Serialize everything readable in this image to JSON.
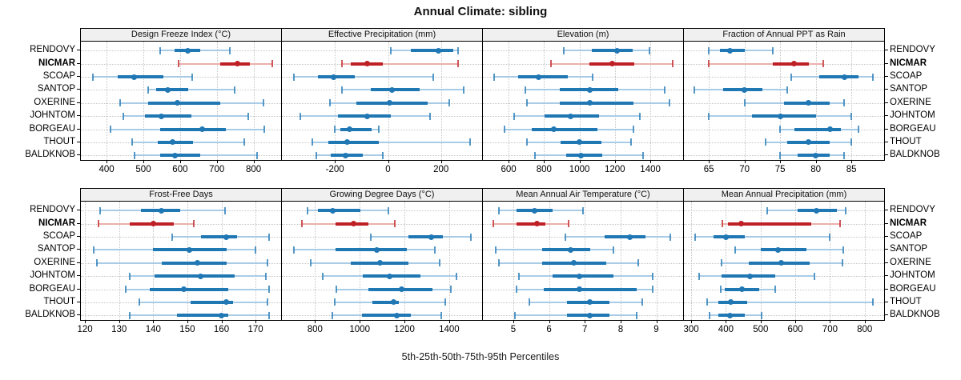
{
  "title": "Annual Climate: sibling",
  "caption": "5th-25th-50th-75th-95th Percentiles",
  "colors": {
    "main": "#1F77B4",
    "main_light": "#A9CCE6",
    "highlight": "#BF2026",
    "highlight_light": "#EDB0AA",
    "grid": "#C6C6C6",
    "strip_bg": "#F0F0F0",
    "border": "#000000"
  },
  "chart_data": {
    "type": "scatter",
    "subtype": "percentile-interval-trellis",
    "title": "Annual Climate: sibling",
    "caption": "5th-25th-50th-75th-95th Percentiles",
    "percentiles": [
      5,
      25,
      50,
      75,
      95
    ],
    "grid": true,
    "legend_position": "none",
    "stations_top_to_bottom": [
      "RENDOVY",
      "NICMAR",
      "SCOAP",
      "SANTOP",
      "OXERINE",
      "JOHNTOM",
      "BORGEAU",
      "THOUT",
      "BALDKNOB"
    ],
    "highlight_station": "NICMAR",
    "panels": [
      {
        "title": "Design Freeze Index (°C)",
        "xlim": [
          330,
          875
        ],
        "ticks": [
          400,
          500,
          600,
          700,
          800
        ],
        "values": {
          "RENDOVY": [
            545,
            585,
            620,
            655,
            735
          ],
          "NICMAR": [
            595,
            710,
            755,
            790,
            850
          ],
          "SCOAP": [
            363,
            430,
            475,
            554,
            634
          ],
          "SANTOP": [
            513,
            535,
            566,
            622,
            748
          ],
          "OXERINE": [
            437,
            513,
            593,
            710,
            826
          ],
          "JOHNTOM": [
            445,
            505,
            550,
            630,
            785
          ],
          "BORGEAU": [
            410,
            545,
            660,
            725,
            830
          ],
          "THOUT": [
            470,
            540,
            580,
            635,
            775
          ],
          "BALDKNOB": [
            475,
            545,
            585,
            655,
            810
          ]
        }
      },
      {
        "title": "Effective Precipitation (mm)",
        "xlim": [
          -400,
          355
        ],
        "ticks": [
          -200,
          0,
          200
        ],
        "values": {
          "RENDOVY": [
            10,
            85,
            190,
            245,
            265
          ],
          "NICMAR": [
            -175,
            -140,
            -80,
            -20,
            265
          ],
          "SCOAP": [
            -355,
            -265,
            -205,
            -125,
            170
          ],
          "SANTOP": [
            -175,
            -65,
            15,
            120,
            285
          ],
          "OXERINE": [
            -220,
            -120,
            5,
            150,
            230
          ],
          "JOHNTOM": [
            -330,
            -190,
            -80,
            10,
            160
          ],
          "BORGEAU": [
            -200,
            -180,
            -145,
            -60,
            -35
          ],
          "THOUT": [
            -285,
            -225,
            -155,
            -35,
            310
          ],
          "BALDKNOB": [
            -270,
            -215,
            -160,
            -95,
            -20
          ]
        }
      },
      {
        "title": "Elevation (m)",
        "xlim": [
          455,
          1585
        ],
        "ticks": [
          600,
          800,
          1000,
          1200,
          1400
        ],
        "values": {
          "RENDOVY": [
            910,
            1070,
            1210,
            1300,
            1395
          ],
          "NICMAR": [
            840,
            1055,
            1185,
            1310,
            1525
          ],
          "SCOAP": [
            520,
            655,
            770,
            935,
            1075
          ],
          "SANTOP": [
            695,
            890,
            1060,
            1220,
            1480
          ],
          "OXERINE": [
            705,
            890,
            1060,
            1305,
            1510
          ],
          "JOHNTOM": [
            630,
            805,
            950,
            1110,
            1340
          ],
          "BORGEAU": [
            575,
            730,
            855,
            1100,
            1305
          ],
          "THOUT": [
            705,
            895,
            1000,
            1125,
            1290
          ],
          "BALDKNOB": [
            750,
            925,
            1010,
            1130,
            1360
          ]
        }
      },
      {
        "title": "Fraction of Annual PPT as Rain",
        "xlim": [
          61.5,
          89.6
        ],
        "ticks": [
          65,
          70,
          75,
          80,
          85
        ],
        "values": {
          "RENDOVY": [
            65,
            66.5,
            68,
            70,
            74
          ],
          "NICMAR": [
            65,
            74,
            77,
            79,
            81
          ],
          "SCOAP": [
            76.5,
            80.5,
            84,
            86,
            88
          ],
          "SANTOP": [
            63,
            67,
            70,
            72.5,
            76
          ],
          "OXERINE": [
            70,
            75.5,
            79,
            82,
            84
          ],
          "JOHNTOM": [
            65,
            71,
            75,
            80,
            85
          ],
          "BORGEAU": [
            75,
            77,
            82,
            83.5,
            86
          ],
          "THOUT": [
            73,
            76,
            79,
            82,
            85
          ],
          "BALDKNOB": [
            75,
            77.5,
            80,
            82,
            84
          ]
        }
      },
      {
        "title": "Frost-Free Days",
        "xlim": [
          118.8,
          177.5
        ],
        "ticks": [
          120,
          130,
          140,
          150,
          160,
          170
        ],
        "values": {
          "RENDOVY": [
            124.5,
            136.5,
            142.5,
            148,
            161
          ],
          "NICMAR": [
            124,
            133,
            140,
            146,
            152
          ],
          "SCOAP": [
            145.5,
            154,
            161.5,
            164.5,
            174
          ],
          "SANTOP": [
            122.5,
            140,
            150.5,
            161.5,
            170
          ],
          "OXERINE": [
            123.5,
            142.5,
            153,
            161.5,
            173.5
          ],
          "JOHNTOM": [
            133,
            140.5,
            154,
            164,
            173
          ],
          "BORGEAU": [
            132,
            139,
            149,
            162,
            174
          ],
          "THOUT": [
            136,
            151,
            161.5,
            163.5,
            173.5
          ],
          "BALDKNOB": [
            133,
            147,
            160,
            162,
            174
          ]
        }
      },
      {
        "title": "Growing Degree Days (°C)",
        "xlim": [
          652,
          1547
        ],
        "ticks": [
          800,
          1000,
          1200,
          1400
        ],
        "values": {
          "RENDOVY": [
            765,
            812,
            878,
            1003,
            1128
          ],
          "NICMAR": [
            740,
            890,
            973,
            1040,
            1158
          ],
          "SCOAP": [
            1050,
            1218,
            1318,
            1372,
            1498
          ],
          "SANTOP": [
            707,
            890,
            1075,
            1211,
            1334
          ],
          "OXERINE": [
            782,
            961,
            1092,
            1217,
            1358
          ],
          "JOHNTOM": [
            836,
            1015,
            1134,
            1271,
            1432
          ],
          "BORGEAU": [
            895,
            1039,
            1188,
            1325,
            1408
          ],
          "THOUT": [
            889,
            1056,
            1152,
            1175,
            1382
          ],
          "BALDKNOB": [
            878,
            1009,
            1167,
            1229,
            1366
          ]
        }
      },
      {
        "title": "Mean Annual Air Temperature (°C)",
        "xlim": [
          4.15,
          9.75
        ],
        "ticks": [
          5,
          6,
          7,
          8,
          9
        ],
        "values": {
          "RENDOVY": [
            4.6,
            5.1,
            5.6,
            6.1,
            6.95
          ],
          "NICMAR": [
            4.45,
            5.1,
            5.65,
            5.9,
            6.55
          ],
          "SCOAP": [
            6.45,
            7.55,
            8.25,
            8.7,
            9.4
          ],
          "SANTOP": [
            4.5,
            5.8,
            6.6,
            7.15,
            7.8
          ],
          "OXERINE": [
            4.6,
            5.8,
            6.7,
            7.6,
            8.5
          ],
          "JOHNTOM": [
            5.15,
            6.1,
            6.85,
            7.8,
            8.9
          ],
          "BORGEAU": [
            5.1,
            5.85,
            6.85,
            8.45,
            8.9
          ],
          "THOUT": [
            5.45,
            6.5,
            7.15,
            7.7,
            8.6
          ],
          "BALDKNOB": [
            5.05,
            6.5,
            7.15,
            7.7,
            8.45
          ]
        }
      },
      {
        "title": "Mean Annual Precipitation (mm)",
        "xlim": [
          279,
          856
        ],
        "ticks": [
          300,
          400,
          500,
          600,
          700,
          800
        ],
        "values": {
          "RENDOVY": [
            518,
            606,
            660,
            719,
            745
          ],
          "NICMAR": [
            390,
            405,
            445,
            645,
            730
          ],
          "SCOAP": [
            312,
            365,
            400,
            455,
            700
          ],
          "SANTOP": [
            427,
            500,
            550,
            631,
            738
          ],
          "OXERINE": [
            387,
            465,
            560,
            642,
            735
          ],
          "JOHNTOM": [
            323,
            388,
            469,
            542,
            654
          ],
          "BORGEAU": [
            385,
            396,
            446,
            496,
            542
          ],
          "THOUT": [
            346,
            377,
            414,
            462,
            823
          ],
          "BALDKNOB": [
            352,
            377,
            412,
            454,
            502
          ]
        }
      }
    ]
  }
}
